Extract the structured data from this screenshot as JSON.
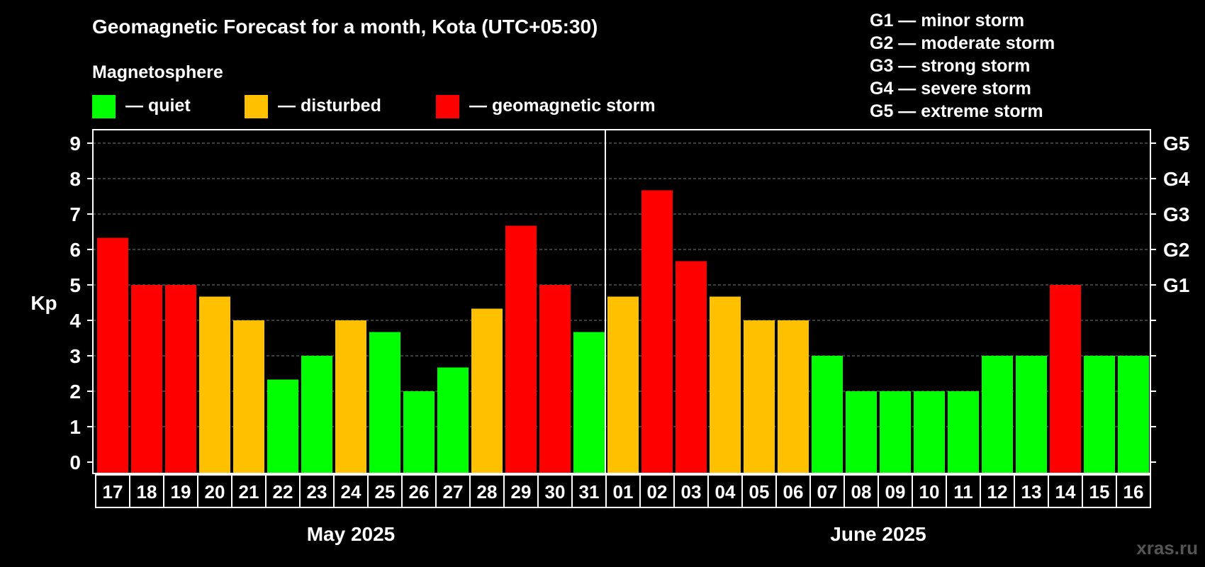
{
  "chart_data": {
    "type": "bar",
    "title": "Geomagnetic Forecast for a month, Kota (UTC+05:30)",
    "legend_title": "Magnetosphere",
    "legend": [
      {
        "label": "— quiet",
        "color": "#00ff00"
      },
      {
        "label": "— disturbed",
        "color": "#ffc000"
      },
      {
        "label": "— geomagnetic storm",
        "color": "#ff0000"
      }
    ],
    "storm_scale": [
      "G1 — minor storm",
      "G2 — moderate storm",
      "G3 — strong storm",
      "G4 — severe storm",
      "G5 — extreme storm"
    ],
    "ylabel": "Kp",
    "ylim": [
      0,
      9
    ],
    "y_ticks": [
      "0",
      "1",
      "2",
      "3",
      "4",
      "5",
      "6",
      "7",
      "8",
      "9"
    ],
    "right_ticks": [
      {
        "value": 5,
        "label": "G1"
      },
      {
        "value": 6,
        "label": "G2"
      },
      {
        "value": 7,
        "label": "G3"
      },
      {
        "value": 8,
        "label": "G4"
      },
      {
        "value": 9,
        "label": "G5"
      }
    ],
    "grid": true,
    "categories": [
      "17",
      "18",
      "19",
      "20",
      "21",
      "22",
      "23",
      "24",
      "25",
      "26",
      "27",
      "28",
      "29",
      "30",
      "31",
      "01",
      "02",
      "03",
      "04",
      "05",
      "06",
      "07",
      "08",
      "09",
      "10",
      "11",
      "12",
      "13",
      "14",
      "15",
      "16"
    ],
    "values": [
      6.33,
      5,
      5,
      4.67,
      4,
      2.33,
      3,
      4,
      3.67,
      2,
      2.67,
      4.33,
      6.67,
      5,
      3.67,
      4.67,
      7.67,
      5.67,
      4.67,
      4,
      4,
      3,
      2,
      2,
      2,
      2,
      3,
      3,
      5,
      3,
      3
    ],
    "levels": [
      "storm",
      "storm",
      "storm",
      "disturbed",
      "disturbed",
      "quiet",
      "quiet",
      "disturbed",
      "quiet",
      "quiet",
      "quiet",
      "disturbed",
      "storm",
      "storm",
      "quiet",
      "disturbed",
      "storm",
      "storm",
      "disturbed",
      "disturbed",
      "disturbed",
      "quiet",
      "quiet",
      "quiet",
      "quiet",
      "quiet",
      "quiet",
      "quiet",
      "storm",
      "quiet",
      "quiet"
    ],
    "level_colors": {
      "quiet": "#00ff00",
      "disturbed": "#ffc000",
      "storm": "#ff0000"
    },
    "months": [
      {
        "label": "May 2025",
        "start": 0,
        "count": 15
      },
      {
        "label": "June 2025",
        "start": 15,
        "count": 16
      }
    ]
  },
  "watermark": "xras.ru"
}
